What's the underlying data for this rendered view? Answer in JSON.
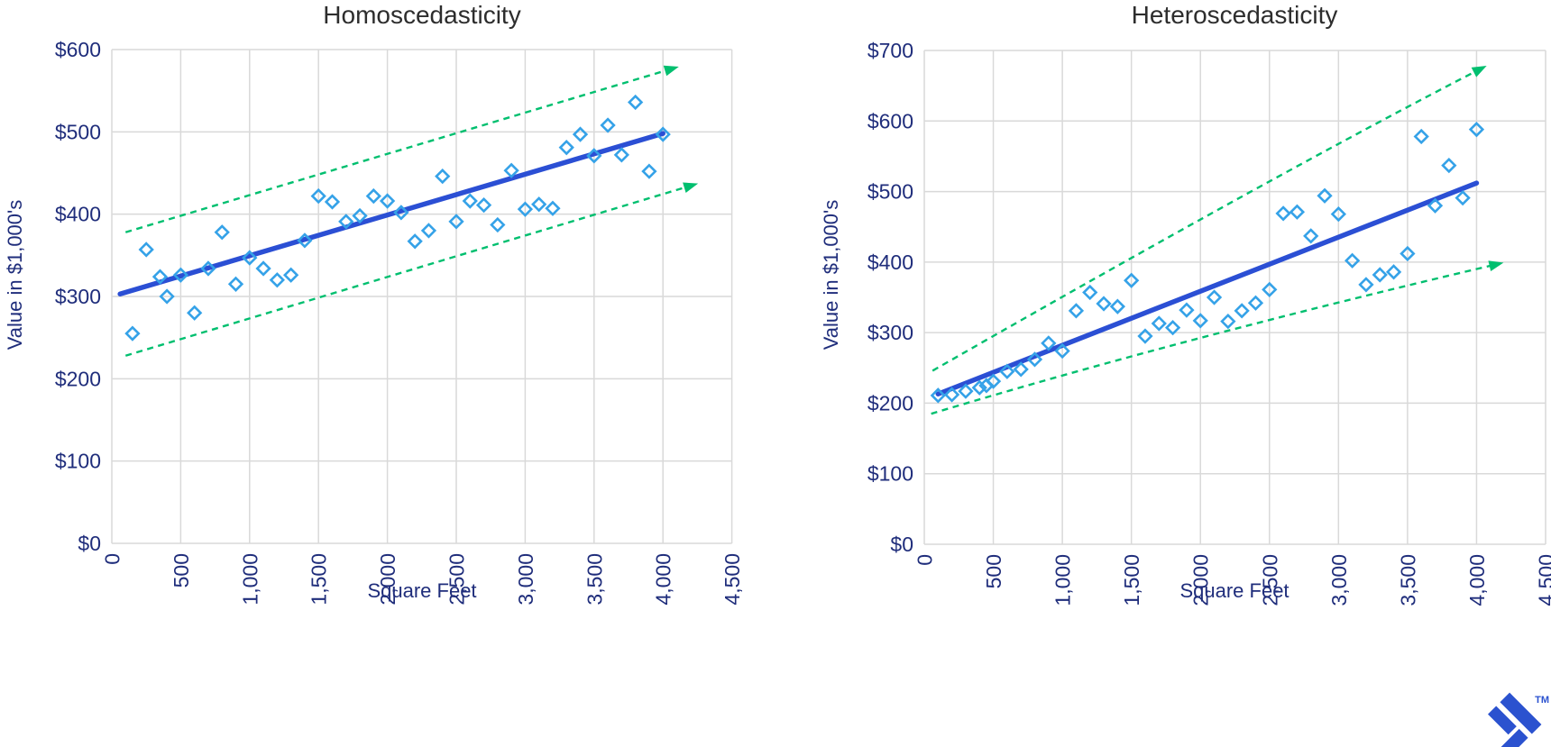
{
  "branding": {
    "logo": "toptal-mark",
    "trademark": "TM",
    "logo_color": "#2b52cf"
  },
  "style": {
    "marker_color": "#35a2e8",
    "trend_color": "#2b4fd4",
    "band_color": "#00bf6f",
    "grid_color": "#d9d9d9",
    "axis_text_color": "#1f2d7b",
    "title_color": "#2d2d2d",
    "background": "#ffffff"
  },
  "chart_data": [
    {
      "type": "scatter",
      "title": "Homoscedasticity",
      "xlabel": "Square Feet",
      "ylabel": "Value in $1,000's",
      "xlim": [
        0,
        4500
      ],
      "ylim": [
        0,
        600
      ],
      "grid": true,
      "x_tick_values": [
        0,
        500,
        1000,
        1500,
        2000,
        2500,
        3000,
        3500,
        4000,
        4500
      ],
      "x_tick_labels": [
        "0",
        "500",
        "1,000",
        "1,500",
        "2,000",
        "2,500",
        "3,000",
        "3,500",
        "4,000",
        "4,500"
      ],
      "y_tick_values": [
        0,
        100,
        200,
        300,
        400,
        500,
        600
      ],
      "y_tick_labels": [
        "$0",
        "$100",
        "$200",
        "$300",
        "$400",
        "$500",
        "$600"
      ],
      "points_sqft_value": [
        [
          150,
          255
        ],
        [
          250,
          357
        ],
        [
          350,
          324
        ],
        [
          400,
          300
        ],
        [
          500,
          326
        ],
        [
          600,
          280
        ],
        [
          700,
          334
        ],
        [
          800,
          378
        ],
        [
          900,
          315
        ],
        [
          1000,
          347
        ],
        [
          1100,
          334
        ],
        [
          1200,
          320
        ],
        [
          1300,
          326
        ],
        [
          1400,
          368
        ],
        [
          1500,
          422
        ],
        [
          1600,
          415
        ],
        [
          1700,
          391
        ],
        [
          1800,
          398
        ],
        [
          1900,
          422
        ],
        [
          2000,
          416
        ],
        [
          2100,
          402
        ],
        [
          2200,
          367
        ],
        [
          2300,
          380
        ],
        [
          2400,
          446
        ],
        [
          2500,
          391
        ],
        [
          2600,
          416
        ],
        [
          2700,
          411
        ],
        [
          2800,
          387
        ],
        [
          2900,
          453
        ],
        [
          3000,
          406
        ],
        [
          3100,
          412
        ],
        [
          3200,
          407
        ],
        [
          3300,
          481
        ],
        [
          3400,
          497
        ],
        [
          3500,
          471
        ],
        [
          3600,
          508
        ],
        [
          3700,
          472
        ],
        [
          3800,
          536
        ],
        [
          3900,
          452
        ],
        [
          4000,
          497
        ]
      ],
      "trend_line": {
        "start": [
          60,
          303
        ],
        "end": [
          4000,
          498
        ]
      },
      "upper_bound_dashed": {
        "start": [
          100,
          378
        ],
        "end": [
          4090,
          578
        ],
        "arrow": true
      },
      "lower_bound_dashed": {
        "start": [
          100,
          228
        ],
        "end": [
          4230,
          436
        ],
        "arrow": true
      }
    },
    {
      "type": "scatter",
      "title": "Heteroscedasticity",
      "xlabel": "Square Feet",
      "ylabel": "Value in $1,000's",
      "xlim": [
        0,
        4500
      ],
      "ylim": [
        0,
        700
      ],
      "grid": true,
      "x_tick_values": [
        0,
        500,
        1000,
        1500,
        2000,
        2500,
        3000,
        3500,
        4000,
        4500
      ],
      "x_tick_labels": [
        "0",
        "500",
        "1,000",
        "1,500",
        "2,000",
        "2,500",
        "3,000",
        "3,500",
        "4,000",
        "4,500"
      ],
      "y_tick_values": [
        0,
        100,
        200,
        300,
        400,
        500,
        600,
        700
      ],
      "y_tick_labels": [
        "$0",
        "$100",
        "$200",
        "$300",
        "$400",
        "$500",
        "$600",
        "$700"
      ],
      "points_sqft_value": [
        [
          100,
          211
        ],
        [
          200,
          212
        ],
        [
          300,
          217
        ],
        [
          400,
          222
        ],
        [
          450,
          225
        ],
        [
          500,
          231
        ],
        [
          600,
          245
        ],
        [
          700,
          248
        ],
        [
          800,
          262
        ],
        [
          900,
          285
        ],
        [
          1000,
          274
        ],
        [
          1100,
          331
        ],
        [
          1200,
          357
        ],
        [
          1300,
          341
        ],
        [
          1400,
          337
        ],
        [
          1500,
          374
        ],
        [
          1600,
          295
        ],
        [
          1700,
          313
        ],
        [
          1800,
          307
        ],
        [
          1900,
          332
        ],
        [
          2000,
          317
        ],
        [
          2100,
          350
        ],
        [
          2200,
          316
        ],
        [
          2300,
          331
        ],
        [
          2400,
          342
        ],
        [
          2500,
          361
        ],
        [
          2600,
          469
        ],
        [
          2700,
          471
        ],
        [
          2800,
          437
        ],
        [
          2900,
          494
        ],
        [
          3000,
          468
        ],
        [
          3100,
          402
        ],
        [
          3200,
          368
        ],
        [
          3300,
          382
        ],
        [
          3400,
          386
        ],
        [
          3500,
          412
        ],
        [
          3600,
          578
        ],
        [
          3700,
          480
        ],
        [
          3800,
          537
        ],
        [
          3900,
          491
        ],
        [
          4000,
          588
        ]
      ],
      "trend_line": {
        "start": [
          100,
          213
        ],
        "end": [
          4000,
          512
        ]
      },
      "upper_bound_dashed": {
        "start": [
          60,
          246
        ],
        "end": [
          4050,
          676
        ],
        "curve_through": [
          2320,
          495
        ],
        "arrow": true
      },
      "lower_bound_dashed": {
        "start": [
          50,
          185
        ],
        "end": [
          4170,
          398
        ],
        "curve_through": [
          1990,
          292
        ],
        "arrow": true
      }
    }
  ]
}
